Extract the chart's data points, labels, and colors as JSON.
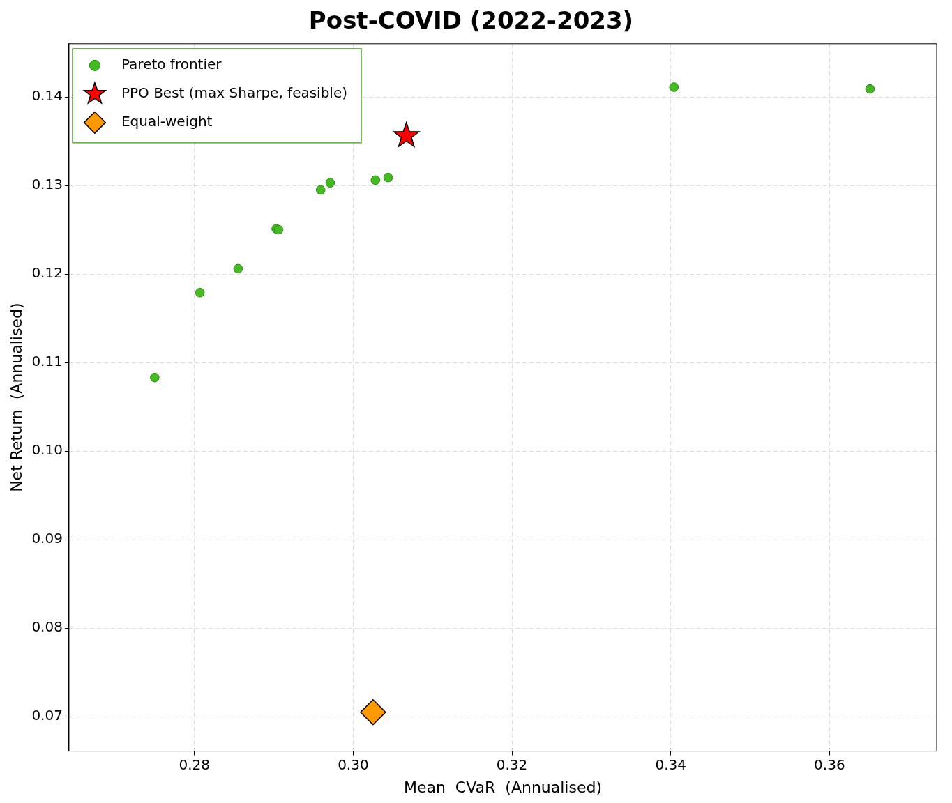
{
  "chart_data": {
    "type": "scatter",
    "title": "Post-COVID (2022-2023)",
    "xlabel": "Mean  CVaR  (Annualised)",
    "ylabel": "Net Return  (Annualised)",
    "xlim": [
      0.2642,
      0.3735
    ],
    "xticks": [
      0.28,
      {
        "value": 0.3,
        "label": "0.30"
      },
      0.32,
      0.34,
      0.36
    ],
    "ylim": [
      0.0661,
      0.146
    ],
    "yticks": [
      0.07,
      0.08,
      0.09,
      {
        "value": 0.1,
        "label": "0.10"
      },
      0.11,
      0.12,
      0.13,
      0.14
    ],
    "grid": true,
    "legend": "top left",
    "series": [
      {
        "name": "Pareto frontier",
        "color": "#44bb22",
        "marker": "circle",
        "x": [
          0.275,
          0.2807,
          0.2855,
          0.2903,
          0.2906,
          0.2959,
          0.2971,
          0.3028,
          0.3044,
          0.3404,
          0.3651
        ],
        "values": [
          0.1083,
          0.1179,
          0.1206,
          0.1251,
          0.125,
          0.1295,
          0.1303,
          0.1306,
          0.1309,
          0.1411,
          0.1409
        ]
      },
      {
        "name": "PPO Best (max Sharpe, feasible)",
        "color": "#ff0000",
        "marker": "star",
        "x": [
          0.3067
        ],
        "values": [
          0.1356
        ]
      },
      {
        "name": "Equal-weight",
        "color": "#ff9900",
        "marker": "diamond",
        "x": [
          0.3025
        ],
        "values": [
          0.0705
        ]
      }
    ]
  }
}
